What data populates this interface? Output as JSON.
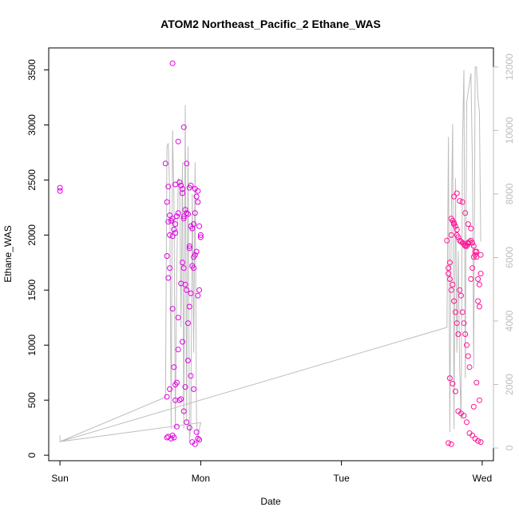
{
  "chart_data": {
    "type": "scatter",
    "title": "ATOM2 Northeast_Pacific_2 Ethane_WAS",
    "xlabel": "Date",
    "ylabel": "Ethane_WAS",
    "x_ticks": [
      {
        "value": 0,
        "label": "Sun"
      },
      {
        "value": 1,
        "label": "Mon"
      },
      {
        "value": 2,
        "label": "Tue"
      },
      {
        "value": 3,
        "label": "Wed"
      }
    ],
    "xlim": [
      -0.08,
      3.08
    ],
    "y_ticks": [
      0,
      500,
      1000,
      1500,
      2000,
      2500,
      3000,
      3500
    ],
    "ylim": [
      -50,
      3700
    ],
    "y2_ticks": [
      0,
      2000,
      4000,
      6000,
      8000,
      10000,
      12000
    ],
    "y2lim": [
      -400,
      12600
    ],
    "grid": false,
    "colors": {
      "points": "#e000e0",
      "points_late": "#ff1493",
      "secondary_line": "#bdbdbd",
      "right_axis": "#bdbdbd"
    },
    "series": [
      {
        "kind": "points",
        "x": [
          0.0,
          0.0,
          0.75,
          0.76,
          0.77,
          0.78,
          0.78,
          0.79,
          0.8,
          0.8,
          0.81,
          0.82,
          0.82,
          0.83,
          0.84,
          0.85,
          0.86,
          0.87,
          0.88,
          0.88,
          0.89,
          0.9,
          0.9,
          0.91,
          0.92,
          0.92,
          0.93,
          0.94,
          0.95,
          0.95,
          0.96,
          0.97,
          0.98,
          0.99,
          1.0,
          1.0,
          0.76,
          0.77,
          0.78,
          0.8,
          0.81,
          0.82,
          0.83,
          0.84,
          0.86,
          0.87,
          0.88,
          0.89,
          0.9,
          0.91,
          0.92,
          0.93,
          0.94,
          0.95,
          0.96,
          0.97,
          0.98,
          0.99,
          0.76,
          0.78,
          0.8,
          0.82,
          0.84,
          0.86,
          0.88,
          0.9,
          0.92,
          0.94,
          0.96,
          0.98,
          0.77,
          0.79,
          0.81,
          0.83,
          0.85,
          0.87,
          0.89,
          0.91,
          0.93,
          0.95,
          0.97,
          0.99,
          0.76,
          0.8,
          0.84,
          0.88,
          0.92,
          0.96,
          0.77,
          0.82,
          0.87,
          0.93,
          0.98
        ],
        "y": [
          2430,
          2400,
          2650,
          2300,
          2120,
          2180,
          2000,
          2130,
          1990,
          2150,
          2050,
          2020,
          2100,
          2170,
          2200,
          2480,
          2450,
          2420,
          2150,
          2170,
          2230,
          2200,
          2650,
          2190,
          1880,
          1900,
          2080,
          2060,
          1800,
          2100,
          2200,
          2350,
          2300,
          2080,
          2000,
          1980,
          1810,
          1610,
          1700,
          1330,
          800,
          640,
          660,
          1250,
          1560,
          1750,
          1700,
          1550,
          1500,
          1200,
          1350,
          1470,
          1720,
          1700,
          1820,
          1850,
          1450,
          1500,
          530,
          600,
          180,
          500,
          960,
          510,
          400,
          300,
          250,
          120,
          100,
          150,
          170,
          150,
          160,
          260,
          500,
          1030,
          620,
          860,
          720,
          600,
          210,
          140,
          160,
          3560,
          2850,
          2980,
          2430,
          2420,
          2440,
          2460,
          2380,
          2450,
          2400
        ]
      },
      {
        "kind": "points-late",
        "x": [
          2.75,
          2.76,
          2.77,
          2.78,
          2.78,
          2.79,
          2.8,
          2.8,
          2.81,
          2.82,
          2.82,
          2.83,
          2.84,
          2.85,
          2.86,
          2.87,
          2.88,
          2.88,
          2.89,
          2.9,
          2.9,
          2.91,
          2.92,
          2.93,
          2.94,
          2.95,
          2.96,
          2.97,
          2.98,
          2.99,
          2.76,
          2.77,
          2.78,
          2.79,
          2.8,
          2.81,
          2.82,
          2.83,
          2.84,
          2.85,
          2.86,
          2.87,
          2.88,
          2.89,
          2.9,
          2.91,
          2.92,
          2.93,
          2.94,
          2.95,
          2.96,
          2.97,
          2.98,
          2.99,
          2.77,
          2.79,
          2.81,
          2.83,
          2.85,
          2.87,
          2.89,
          2.91,
          2.93,
          2.95,
          2.97,
          2.99,
          2.76,
          2.78,
          2.8,
          2.82,
          2.84,
          2.86,
          2.88,
          2.9,
          2.92,
          2.94,
          2.96,
          2.98
        ],
        "y": [
          1950,
          1700,
          1750,
          2000,
          2150,
          2130,
          2110,
          2100,
          2080,
          2050,
          2000,
          1980,
          1950,
          1940,
          1930,
          1920,
          1910,
          1900,
          1900,
          1920,
          1930,
          1940,
          1950,
          1930,
          1900,
          1850,
          1800,
          1600,
          1550,
          1650,
          1650,
          1600,
          1500,
          1550,
          1400,
          1300,
          1200,
          1100,
          1500,
          1450,
          1300,
          1200,
          1100,
          1000,
          900,
          800,
          1600,
          1700,
          1800,
          1820,
          1850,
          1400,
          1350,
          1820,
          700,
          650,
          580,
          400,
          380,
          360,
          300,
          200,
          180,
          150,
          130,
          120,
          110,
          100,
          2350,
          2380,
          2310,
          2300,
          2200,
          2100,
          2060,
          440,
          660,
          500
        ]
      },
      {
        "kind": "secondary-line",
        "axis": "right",
        "x": [
          0.0,
          0.0,
          0.75,
          0.76,
          0.77,
          0.78,
          0.79,
          0.8,
          0.81,
          0.82,
          0.83,
          0.84,
          0.85,
          0.86,
          0.87,
          0.88,
          0.89,
          0.9,
          0.91,
          0.92,
          0.93,
          0.94,
          0.95,
          0.96,
          0.97,
          0.98,
          0.99,
          1.0,
          1.0,
          0.0,
          2.75,
          2.76,
          2.77,
          2.78,
          2.79,
          2.8,
          2.81,
          2.82,
          2.83,
          2.84,
          2.85,
          2.86,
          2.87,
          2.88,
          2.89,
          2.9,
          2.91,
          2.92,
          2.93,
          2.94,
          2.95,
          2.96,
          2.97,
          2.98,
          2.99
        ],
        "y": [
          400,
          200,
          1600,
          9500,
          9600,
          8000,
          600,
          10000,
          7800,
          600,
          5500,
          8500,
          8400,
          3800,
          9000,
          600,
          10800,
          800,
          9500,
          200,
          800,
          8000,
          3000,
          9000,
          900,
          200,
          600,
          800,
          800,
          200,
          3800,
          9800,
          500,
          7000,
          10200,
          600,
          8500,
          3000,
          6200,
          2500,
          900,
          9500,
          11900,
          2200,
          10900,
          11200,
          11500,
          11800,
          9000,
          2500,
          12000,
          12000,
          11000,
          10600,
          6500
        ]
      }
    ]
  }
}
